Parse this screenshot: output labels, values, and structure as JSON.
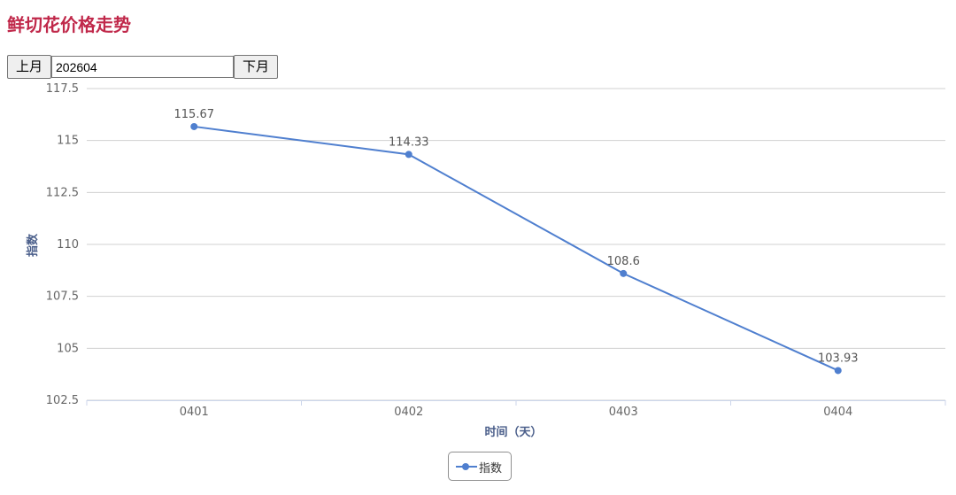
{
  "page": {
    "title": "鲜切花价格走势"
  },
  "toolbar": {
    "prev_label": "上月",
    "month_value": "202604",
    "next_label": "下月"
  },
  "colors": {
    "title": "#c0284a",
    "series": "#4f7fcf",
    "axis_title": "#4a5e8a",
    "grid": "#d0d0d0"
  },
  "chart_data": {
    "type": "line",
    "title": "",
    "xlabel": "时间（天）",
    "ylabel": "指数",
    "categories": [
      "0401",
      "0402",
      "0403",
      "0404"
    ],
    "ylim": [
      102.5,
      117.5
    ],
    "yticks": [
      102.5,
      105,
      107.5,
      110,
      112.5,
      115,
      117.5
    ],
    "ytick_labels": [
      "102.5",
      "105",
      "107.5",
      "110",
      "112.5",
      "115",
      "117.5"
    ],
    "grid": true,
    "legend_position": "bottom",
    "series": [
      {
        "name": "指数",
        "values": [
          115.67,
          114.33,
          108.6,
          103.93
        ],
        "labels": [
          "115.67",
          "114.33",
          "108.6",
          "103.93"
        ]
      }
    ]
  }
}
